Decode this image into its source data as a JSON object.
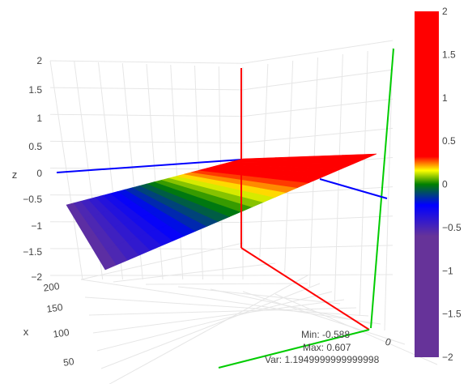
{
  "chart_data": {
    "type": "surface-3d",
    "axes": {
      "z": {
        "label": "z",
        "ticks": [
          2,
          1.5,
          1,
          0.5,
          0,
          -0.5,
          -1,
          -1.5,
          -2
        ],
        "tick_labels": [
          "2",
          "1.5",
          "1",
          "0.5",
          "0",
          "−0.5",
          "−1",
          "−1.5",
          "−2"
        ],
        "range": [
          -2,
          2
        ]
      },
      "x": {
        "label": "x",
        "ticks": [
          200,
          150,
          100,
          50
        ],
        "tick_labels": [
          "200",
          "150",
          "100",
          "50"
        ]
      },
      "y": {
        "tick_labels": [
          "0"
        ]
      }
    },
    "colorbar": {
      "range": [
        -2,
        2
      ],
      "ticks": [
        2,
        1.5,
        1,
        0.5,
        0,
        -0.5,
        -1,
        -1.5,
        -2
      ],
      "tick_labels": [
        "2",
        "1.5",
        "1",
        "0.5",
        "0",
        "−0.5",
        "−1",
        "−1.5",
        "−2"
      ],
      "colorscale": [
        [
          0.0,
          "#663399"
        ],
        [
          0.35,
          "#663399"
        ],
        [
          0.44,
          "#0000ff"
        ],
        [
          0.5,
          "#008000"
        ],
        [
          0.54,
          "#ffff00"
        ],
        [
          0.58,
          "#ff0000"
        ],
        [
          1.0,
          "#ff0000"
        ]
      ]
    },
    "surface": {
      "z_min": -0.588,
      "z_max": 0.607,
      "corners": [
        {
          "label": "left",
          "z": -0.588
        },
        {
          "label": "bottom",
          "z": -0.588
        },
        {
          "label": "right",
          "z": 0.607
        },
        {
          "label": "top",
          "z": 0.607
        }
      ],
      "grid_density": 24
    },
    "stats": {
      "min_text": "Min: -0.588",
      "max_text": "Max: 0.607",
      "var_text": "Var: 1.1949999999999998"
    },
    "colors": {
      "axis_z_line": "#ff0000",
      "axis_x_line": "#0000ff",
      "axis_y_line": "#00cc00",
      "grid": "#e6e6e6",
      "text": "#444444"
    }
  }
}
